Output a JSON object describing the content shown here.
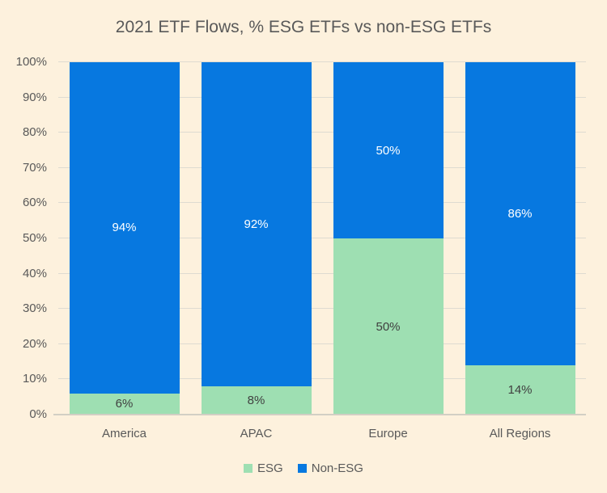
{
  "chart": {
    "title": "2021 ETF Flows, % ESG ETFs vs non-ESG ETFs"
  },
  "chart_data": {
    "type": "bar",
    "stacked": true,
    "orientation": "vertical",
    "title": "2021 ETF Flows, % ESG ETFs vs non-ESG ETFs",
    "categories": [
      "America",
      "APAC",
      "Europe",
      "All Regions"
    ],
    "series": [
      {
        "name": "ESG",
        "color": "#9EDFB2",
        "label_color": "#404040",
        "values": [
          6,
          8,
          50,
          14
        ]
      },
      {
        "name": "Non-ESG",
        "color": "#0778E0",
        "label_color": "#FFFFFF",
        "values": [
          94,
          92,
          50,
          86
        ]
      }
    ],
    "data_label_suffix": "%",
    "y_ticks": [
      "0%",
      "10%",
      "20%",
      "30%",
      "40%",
      "50%",
      "60%",
      "70%",
      "80%",
      "90%",
      "100%"
    ],
    "ylim": [
      0,
      100
    ],
    "xlabel": "",
    "ylabel": "",
    "grid": true,
    "legend_position": "bottom"
  },
  "colors": {
    "background": "#FDF1DD",
    "text": "#595959",
    "gridline": "#DEDBD1",
    "axis_line": "#D2CFC4"
  }
}
